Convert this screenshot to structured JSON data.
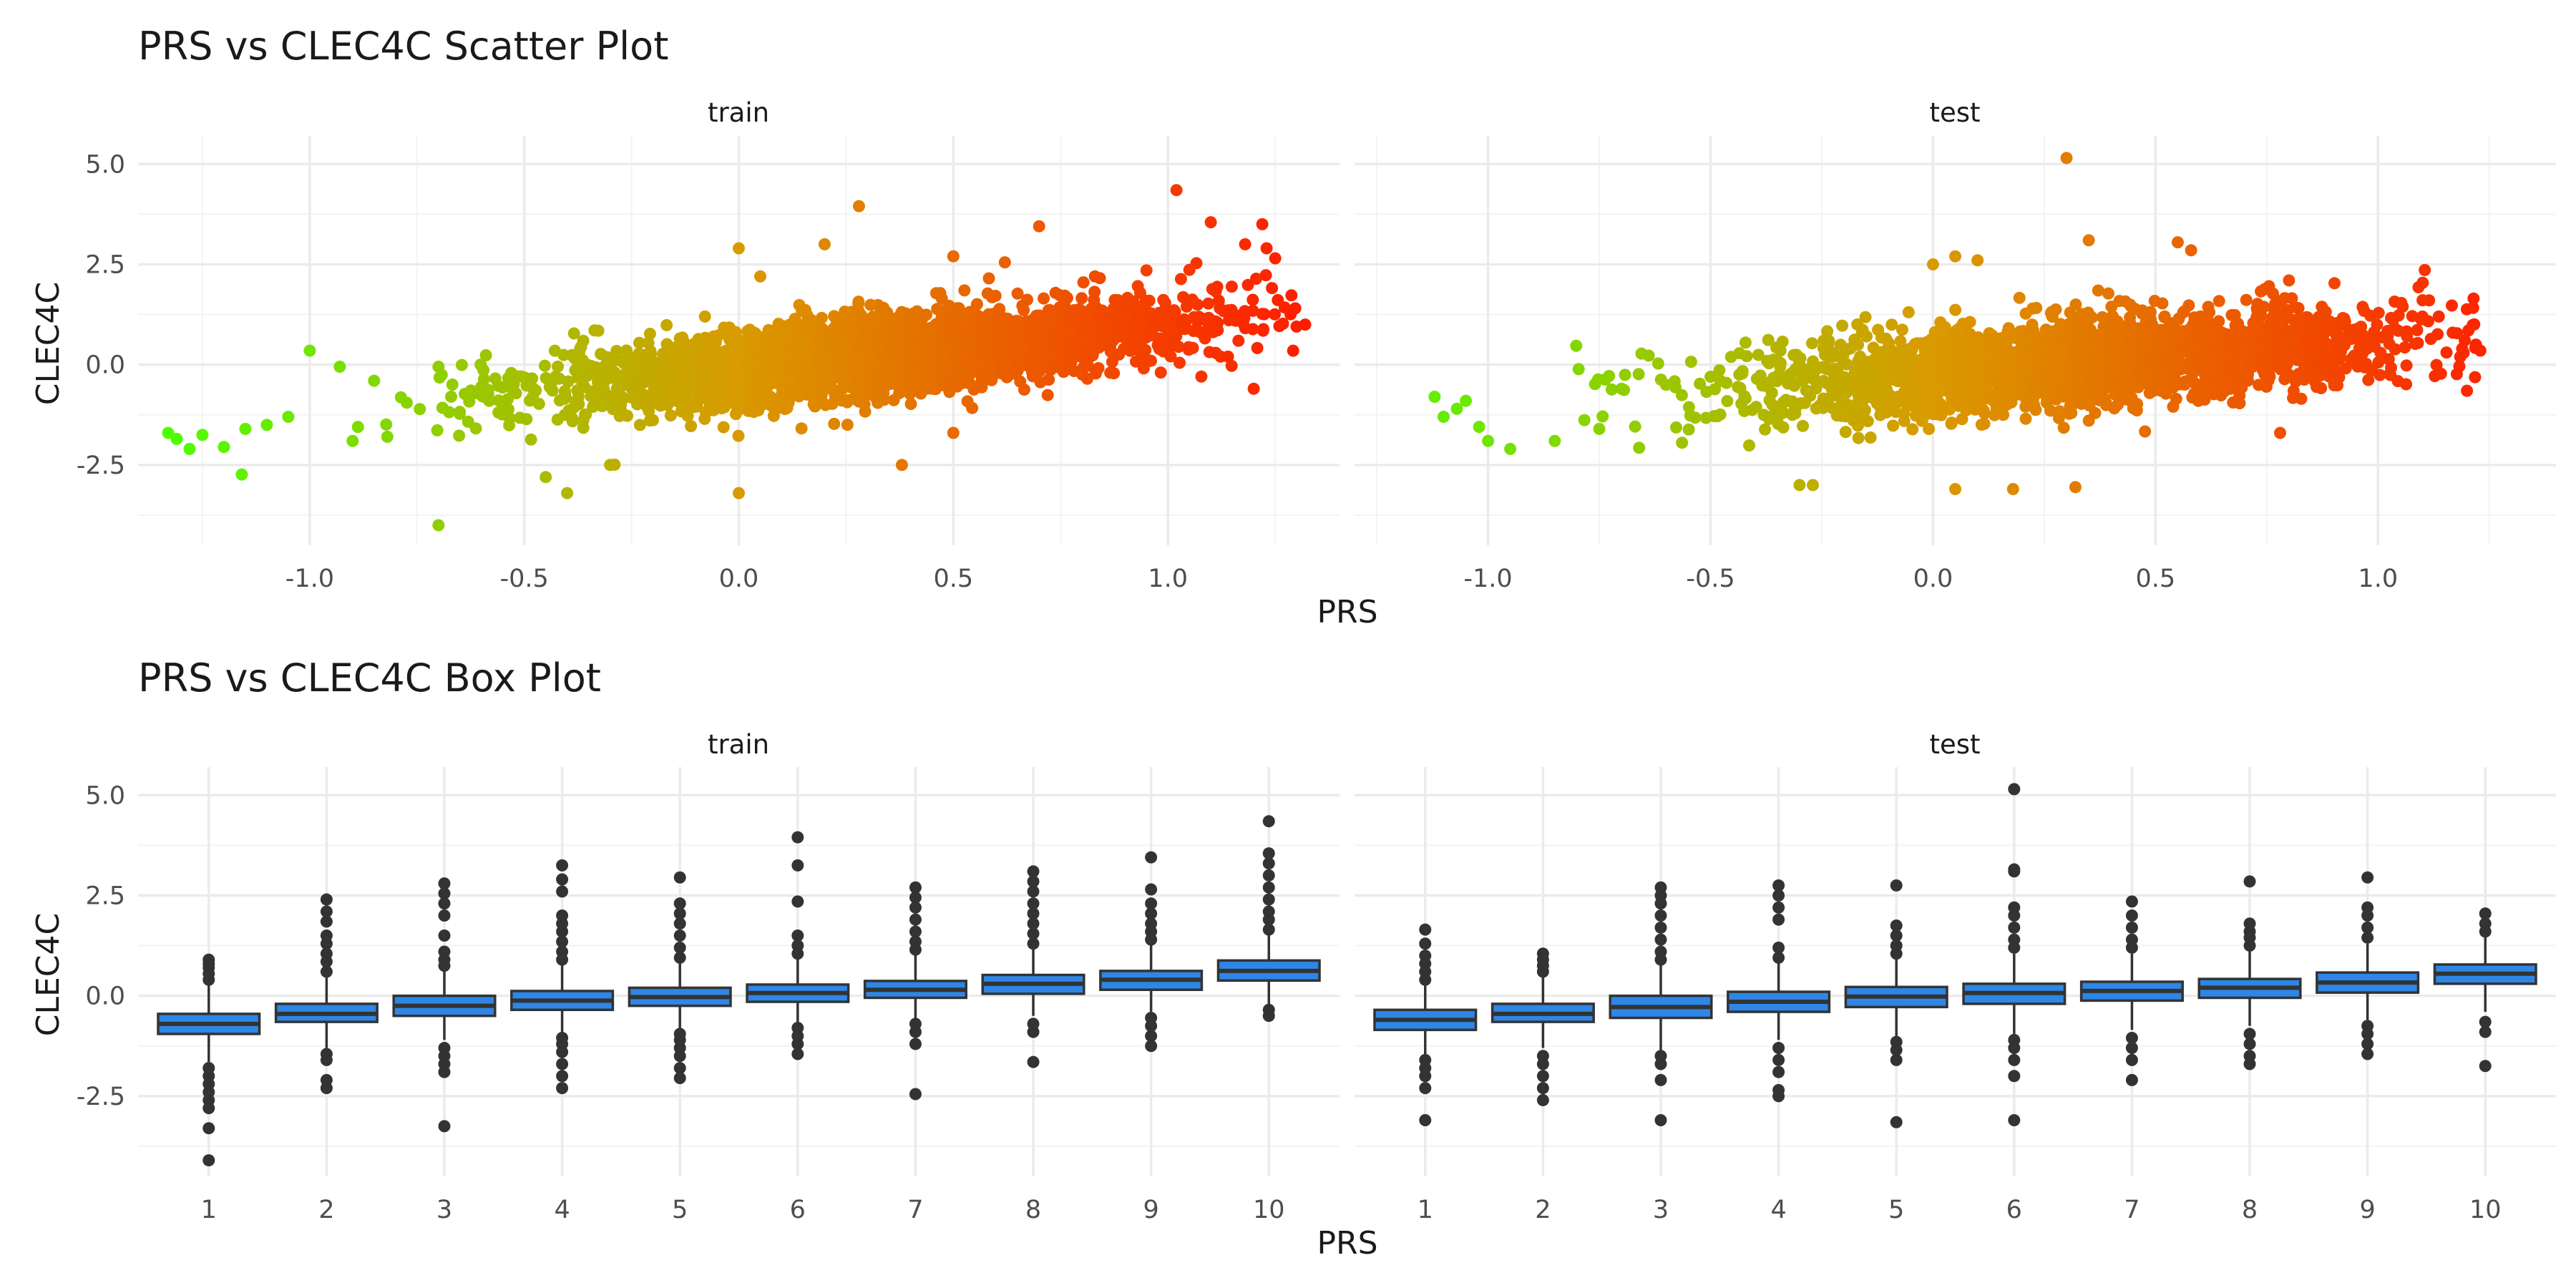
{
  "chart_data": [
    {
      "type": "scatter",
      "title": "PRS vs CLEC4C Scatter Plot",
      "xlabel": "PRS",
      "ylabel": "CLEC4C",
      "ylim": [
        -4.5,
        5.7
      ],
      "yticks": [
        -2.5,
        0.0,
        2.5,
        5.0
      ],
      "grid": true,
      "legend": "none",
      "color_scale": {
        "low": "#4cff00",
        "mid": "#d99a00",
        "high": "#ff1a00"
      },
      "panels": [
        {
          "name": "train",
          "xlim": [
            -1.4,
            1.4
          ],
          "xticks": [
            -1.0,
            -0.5,
            0.0,
            0.5,
            1.0
          ],
          "trend": {
            "slope": 1.05,
            "intercept": -0.12,
            "sd": 0.5
          },
          "n_points": 3000,
          "outliers": [
            [
              -1.33,
              -1.7
            ],
            [
              -1.31,
              -1.85
            ],
            [
              -1.28,
              -2.1
            ],
            [
              -1.25,
              -1.75
            ],
            [
              -1.2,
              -2.05
            ],
            [
              -1.15,
              -1.6
            ],
            [
              -1.1,
              -1.5
            ],
            [
              -1.05,
              -1.3
            ],
            [
              -1.0,
              0.35
            ],
            [
              -0.93,
              -0.05
            ],
            [
              -0.9,
              -1.9
            ],
            [
              -0.85,
              -0.4
            ],
            [
              -0.7,
              -4.0
            ],
            [
              -0.7,
              -0.05
            ],
            [
              -0.6,
              -0.55
            ],
            [
              -0.45,
              -2.8
            ],
            [
              -0.4,
              -3.2
            ],
            [
              -0.3,
              -2.5
            ],
            [
              0.0,
              -3.2
            ],
            [
              0.0,
              2.9
            ],
            [
              0.05,
              2.2
            ],
            [
              0.2,
              3.0
            ],
            [
              0.28,
              3.95
            ],
            [
              0.38,
              -2.5
            ],
            [
              0.5,
              2.7
            ],
            [
              0.5,
              -1.7
            ],
            [
              0.62,
              2.55
            ],
            [
              0.7,
              3.45
            ],
            [
              0.83,
              2.2
            ],
            [
              0.95,
              2.35
            ],
            [
              1.02,
              4.35
            ],
            [
              1.1,
              3.55
            ],
            [
              1.18,
              3.0
            ],
            [
              1.22,
              3.5
            ],
            [
              1.23,
              2.9
            ],
            [
              1.25,
              2.65
            ],
            [
              1.3,
              0.95
            ],
            [
              1.32,
              1.0
            ],
            [
              1.2,
              -0.6
            ],
            [
              1.14,
              0.2
            ]
          ]
        },
        {
          "name": "test",
          "xlim": [
            -1.3,
            1.4
          ],
          "xticks": [
            -1.0,
            -0.5,
            0.0,
            0.5,
            1.0
          ],
          "trend": {
            "slope": 0.85,
            "intercept": -0.2,
            "sd": 0.55
          },
          "n_points": 2200,
          "outliers": [
            [
              -1.12,
              -0.8
            ],
            [
              -1.1,
              -1.3
            ],
            [
              -1.07,
              -1.1
            ],
            [
              -1.05,
              -0.9
            ],
            [
              -1.02,
              -1.55
            ],
            [
              -1.0,
              -1.9
            ],
            [
              -0.95,
              -2.1
            ],
            [
              -0.85,
              -1.9
            ],
            [
              -0.75,
              -1.6
            ],
            [
              -0.7,
              -0.6
            ],
            [
              -0.6,
              -0.5
            ],
            [
              -0.5,
              -0.3
            ],
            [
              -0.3,
              -3.0
            ],
            [
              -0.27,
              -3.0
            ],
            [
              0.0,
              2.5
            ],
            [
              0.05,
              2.7
            ],
            [
              0.1,
              2.6
            ],
            [
              0.05,
              -3.1
            ],
            [
              0.18,
              -3.1
            ],
            [
              0.3,
              5.15
            ],
            [
              0.32,
              -3.05
            ],
            [
              0.35,
              3.1
            ],
            [
              0.55,
              3.05
            ],
            [
              0.58,
              2.85
            ],
            [
              0.78,
              -1.7
            ],
            [
              0.8,
              2.1
            ],
            [
              1.1,
              1.2
            ],
            [
              1.2,
              -0.65
            ],
            [
              1.22,
              0.5
            ],
            [
              1.23,
              0.35
            ]
          ]
        }
      ]
    },
    {
      "type": "box",
      "title": "PRS vs CLEC4C Box Plot",
      "xlabel": "PRS",
      "ylabel": "CLEC4C",
      "ylim": [
        -4.5,
        5.7
      ],
      "yticks": [
        -2.5,
        0.0,
        2.5,
        5.0
      ],
      "grid": true,
      "box_color": "#2e86e6",
      "outline_color": "#333333",
      "categories": [
        "1",
        "2",
        "3",
        "4",
        "5",
        "6",
        "7",
        "8",
        "9",
        "10"
      ],
      "panels": [
        {
          "name": "train",
          "boxes": [
            {
              "cat": "1",
              "q1": -0.95,
              "median": -0.7,
              "q3": -0.45,
              "wlo": -1.65,
              "whi": 0.3,
              "out": [
                -4.1,
                -3.3,
                -2.8,
                -2.6,
                -2.4,
                -2.2,
                -2.0,
                -1.8,
                0.4,
                0.55,
                0.7,
                0.8,
                0.9
              ]
            },
            {
              "cat": "2",
              "q1": -0.65,
              "median": -0.45,
              "q3": -0.2,
              "wlo": -1.3,
              "whi": 0.45,
              "out": [
                -2.3,
                -2.1,
                -1.6,
                -1.45,
                0.6,
                0.85,
                1.05,
                1.3,
                1.5,
                1.85,
                2.1,
                2.4
              ]
            },
            {
              "cat": "3",
              "q1": -0.5,
              "median": -0.25,
              "q3": 0.0,
              "wlo": -1.1,
              "whi": 0.65,
              "out": [
                -3.25,
                -1.9,
                -1.7,
                -1.5,
                -1.3,
                0.75,
                0.9,
                1.1,
                1.5,
                2.0,
                2.3,
                2.55,
                2.8
              ]
            },
            {
              "cat": "4",
              "q1": -0.35,
              "median": -0.12,
              "q3": 0.12,
              "wlo": -0.95,
              "whi": 0.8,
              "out": [
                -2.3,
                -2.0,
                -1.7,
                -1.4,
                -1.2,
                -1.05,
                0.9,
                1.1,
                1.35,
                1.6,
                1.8,
                2.0,
                2.6,
                2.9,
                3.25
              ]
            },
            {
              "cat": "5",
              "q1": -0.25,
              "median": -0.03,
              "q3": 0.2,
              "wlo": -0.85,
              "whi": 0.85,
              "out": [
                -2.05,
                -1.8,
                -1.5,
                -1.3,
                -1.1,
                -0.95,
                0.95,
                1.2,
                1.5,
                1.8,
                2.05,
                2.3,
                2.95
              ]
            },
            {
              "cat": "6",
              "q1": -0.15,
              "median": 0.07,
              "q3": 0.28,
              "wlo": -0.7,
              "whi": 0.95,
              "out": [
                -1.45,
                -1.2,
                -1.0,
                -0.8,
                1.05,
                1.25,
                1.5,
                2.35,
                3.25,
                3.95
              ]
            },
            {
              "cat": "7",
              "q1": -0.05,
              "median": 0.15,
              "q3": 0.37,
              "wlo": -0.6,
              "whi": 1.05,
              "out": [
                -2.45,
                -1.2,
                -0.9,
                -0.7,
                1.15,
                1.35,
                1.6,
                1.9,
                2.2,
                2.45,
                2.7
              ]
            },
            {
              "cat": "8",
              "q1": 0.05,
              "median": 0.3,
              "q3": 0.52,
              "wlo": -0.5,
              "whi": 1.2,
              "out": [
                -1.65,
                -0.9,
                -0.7,
                1.3,
                1.55,
                1.8,
                2.05,
                2.3,
                2.6,
                2.85,
                3.1
              ]
            },
            {
              "cat": "9",
              "q1": 0.15,
              "median": 0.4,
              "q3": 0.62,
              "wlo": -0.4,
              "whi": 1.3,
              "out": [
                -1.25,
                -1.0,
                -0.75,
                -0.55,
                1.4,
                1.6,
                1.8,
                2.05,
                2.3,
                2.65,
                3.45
              ]
            },
            {
              "cat": "10",
              "q1": 0.38,
              "median": 0.62,
              "q3": 0.88,
              "wlo": -0.2,
              "whi": 1.55,
              "out": [
                -0.5,
                -0.35,
                1.65,
                1.9,
                2.1,
                2.4,
                2.7,
                3.0,
                3.3,
                3.55,
                4.35
              ]
            }
          ]
        },
        {
          "name": "test",
          "boxes": [
            {
              "cat": "1",
              "q1": -0.85,
              "median": -0.6,
              "q3": -0.35,
              "wlo": -1.5,
              "whi": 0.25,
              "out": [
                -3.1,
                -2.3,
                -2.0,
                -1.8,
                -1.6,
                0.4,
                0.6,
                0.8,
                1.0,
                1.3,
                1.65
              ]
            },
            {
              "cat": "2",
              "q1": -0.65,
              "median": -0.45,
              "q3": -0.2,
              "wlo": -1.3,
              "whi": 0.45,
              "out": [
                -2.6,
                -2.3,
                -2.0,
                -1.7,
                -1.5,
                0.6,
                0.75,
                0.9,
                1.05
              ]
            },
            {
              "cat": "3",
              "q1": -0.55,
              "median": -0.28,
              "q3": 0.0,
              "wlo": -1.35,
              "whi": 0.8,
              "out": [
                -3.1,
                -2.1,
                -1.7,
                -1.5,
                0.9,
                1.1,
                1.4,
                1.7,
                2.0,
                2.3,
                2.5,
                2.7
              ]
            },
            {
              "cat": "4",
              "q1": -0.4,
              "median": -0.15,
              "q3": 0.1,
              "wlo": -1.1,
              "whi": 0.85,
              "out": [
                -2.5,
                -2.35,
                -1.9,
                -1.6,
                -1.3,
                0.95,
                1.2,
                1.9,
                2.2,
                2.5,
                2.75
              ]
            },
            {
              "cat": "5",
              "q1": -0.28,
              "median": -0.02,
              "q3": 0.22,
              "wlo": -1.0,
              "whi": 0.95,
              "out": [
                -3.15,
                -1.6,
                -1.35,
                -1.15,
                1.05,
                1.25,
                1.5,
                1.75,
                2.75
              ]
            },
            {
              "cat": "6",
              "q1": -0.2,
              "median": 0.07,
              "q3": 0.3,
              "wlo": -0.95,
              "whi": 1.05,
              "out": [
                -3.1,
                -2.0,
                -1.6,
                -1.3,
                -1.1,
                1.2,
                1.4,
                1.7,
                2.0,
                2.2,
                3.1,
                3.15,
                5.15
              ]
            },
            {
              "cat": "7",
              "q1": -0.12,
              "median": 0.12,
              "q3": 0.35,
              "wlo": -0.85,
              "whi": 1.05,
              "out": [
                -2.1,
                -1.6,
                -1.3,
                -1.05,
                1.2,
                1.4,
                1.7,
                2.0,
                2.35
              ]
            },
            {
              "cat": "8",
              "q1": -0.05,
              "median": 0.2,
              "q3": 0.42,
              "wlo": -0.75,
              "whi": 1.1,
              "out": [
                -1.7,
                -1.5,
                -1.2,
                -0.95,
                1.25,
                1.45,
                1.6,
                1.8,
                2.85
              ]
            },
            {
              "cat": "9",
              "q1": 0.08,
              "median": 0.33,
              "q3": 0.58,
              "wlo": -0.6,
              "whi": 1.3,
              "out": [
                -1.45,
                -1.2,
                -0.95,
                -0.75,
                1.45,
                1.7,
                2.0,
                2.2,
                2.95
              ]
            },
            {
              "cat": "10",
              "q1": 0.3,
              "median": 0.55,
              "q3": 0.78,
              "wlo": -0.4,
              "whi": 1.5,
              "out": [
                -1.75,
                -0.9,
                -0.65,
                1.6,
                1.8,
                2.05
              ]
            }
          ]
        }
      ]
    }
  ]
}
